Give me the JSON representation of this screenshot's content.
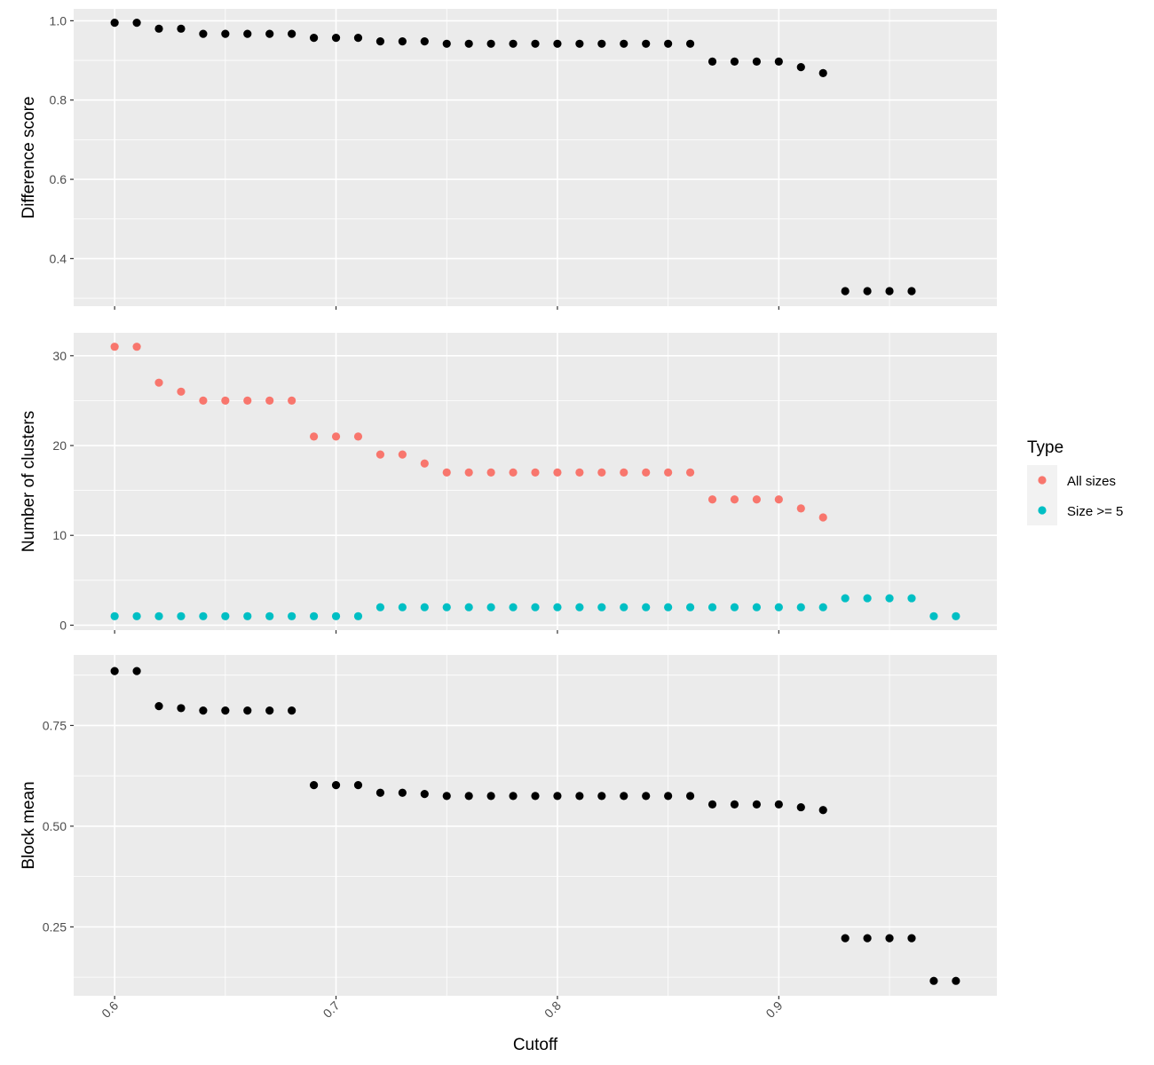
{
  "chart_data": {
    "type": "scatter",
    "layout": "faceted-vertical",
    "x": [
      0.6,
      0.61,
      0.62,
      0.63,
      0.64,
      0.65,
      0.66,
      0.67,
      0.68,
      0.69,
      0.7,
      0.71,
      0.72,
      0.73,
      0.74,
      0.75,
      0.76,
      0.77,
      0.78,
      0.79,
      0.8,
      0.81,
      0.82,
      0.83,
      0.84,
      0.85,
      0.86,
      0.87,
      0.88,
      0.89,
      0.9,
      0.91,
      0.92,
      0.93,
      0.94,
      0.95,
      0.96,
      0.97,
      0.98
    ],
    "xlabel": "Cutoff",
    "xlim": [
      0.5815,
      0.9985
    ],
    "xticks": [
      0.6,
      0.7,
      0.8,
      0.9
    ],
    "xtick_labels": [
      "0.6",
      "0.7",
      "0.8",
      "0.9"
    ],
    "grid": true,
    "panels": [
      {
        "ylabel": "Difference score",
        "ylim": [
          0.28,
          1.03
        ],
        "yticks": [
          0.4,
          0.6,
          0.8,
          1.0
        ],
        "ytick_labels": [
          "0.4",
          "0.6",
          "0.8",
          "1.0"
        ],
        "series": [
          {
            "color": "#000000",
            "values": [
              0.995,
              0.995,
              0.98,
              0.98,
              0.967,
              0.967,
              0.967,
              0.967,
              0.967,
              0.957,
              0.957,
              0.957,
              0.948,
              0.948,
              0.948,
              0.942,
              0.942,
              0.942,
              0.942,
              0.942,
              0.942,
              0.942,
              0.942,
              0.942,
              0.942,
              0.942,
              0.942,
              0.897,
              0.897,
              0.897,
              0.897,
              0.883,
              0.868,
              0.318,
              0.318,
              0.318,
              0.318,
              null,
              null
            ]
          }
        ]
      },
      {
        "ylabel": "Number of clusters",
        "ylim": [
          -0.55,
          32.55
        ],
        "yticks": [
          0,
          10,
          20,
          30
        ],
        "ytick_labels": [
          "0",
          "10",
          "20",
          "30"
        ],
        "series": [
          {
            "name": "All sizes",
            "color": "#F8766D",
            "values": [
              31,
              31,
              27,
              26,
              25,
              25,
              25,
              25,
              25,
              21,
              21,
              21,
              19,
              19,
              18,
              17,
              17,
              17,
              17,
              17,
              17,
              17,
              17,
              17,
              17,
              17,
              17,
              14,
              14,
              14,
              14,
              13,
              12,
              null,
              null,
              null,
              null,
              null,
              null
            ]
          },
          {
            "name": "Size >= 5",
            "color": "#00BFC4",
            "values": [
              1,
              1,
              1,
              1,
              1,
              1,
              1,
              1,
              1,
              1,
              1,
              1,
              2,
              2,
              2,
              2,
              2,
              2,
              2,
              2,
              2,
              2,
              2,
              2,
              2,
              2,
              2,
              2,
              2,
              2,
              2,
              2,
              2,
              3,
              3,
              3,
              3,
              1,
              1
            ]
          }
        ]
      },
      {
        "ylabel": "Block mean",
        "ylim": [
          0.079,
          0.925
        ],
        "yticks": [
          0.25,
          0.5,
          0.75
        ],
        "ytick_labels": [
          "0.25",
          "0.50",
          "0.75"
        ],
        "series": [
          {
            "color": "#000000",
            "values": [
              0.885,
              0.885,
              0.798,
              0.793,
              0.787,
              0.787,
              0.787,
              0.787,
              0.787,
              0.602,
              0.602,
              0.602,
              0.583,
              0.583,
              0.58,
              0.575,
              0.575,
              0.575,
              0.575,
              0.575,
              0.575,
              0.575,
              0.575,
              0.575,
              0.575,
              0.575,
              0.575,
              0.554,
              0.554,
              0.554,
              0.554,
              0.547,
              0.54,
              0.222,
              0.222,
              0.222,
              0.222,
              0.116,
              0.116
            ]
          }
        ]
      }
    ],
    "legend": {
      "title": "Type",
      "position": "right",
      "entries": [
        {
          "label": "All sizes",
          "color": "#F8766D"
        },
        {
          "label": "Size >= 5",
          "color": "#00BFC4"
        }
      ]
    }
  }
}
